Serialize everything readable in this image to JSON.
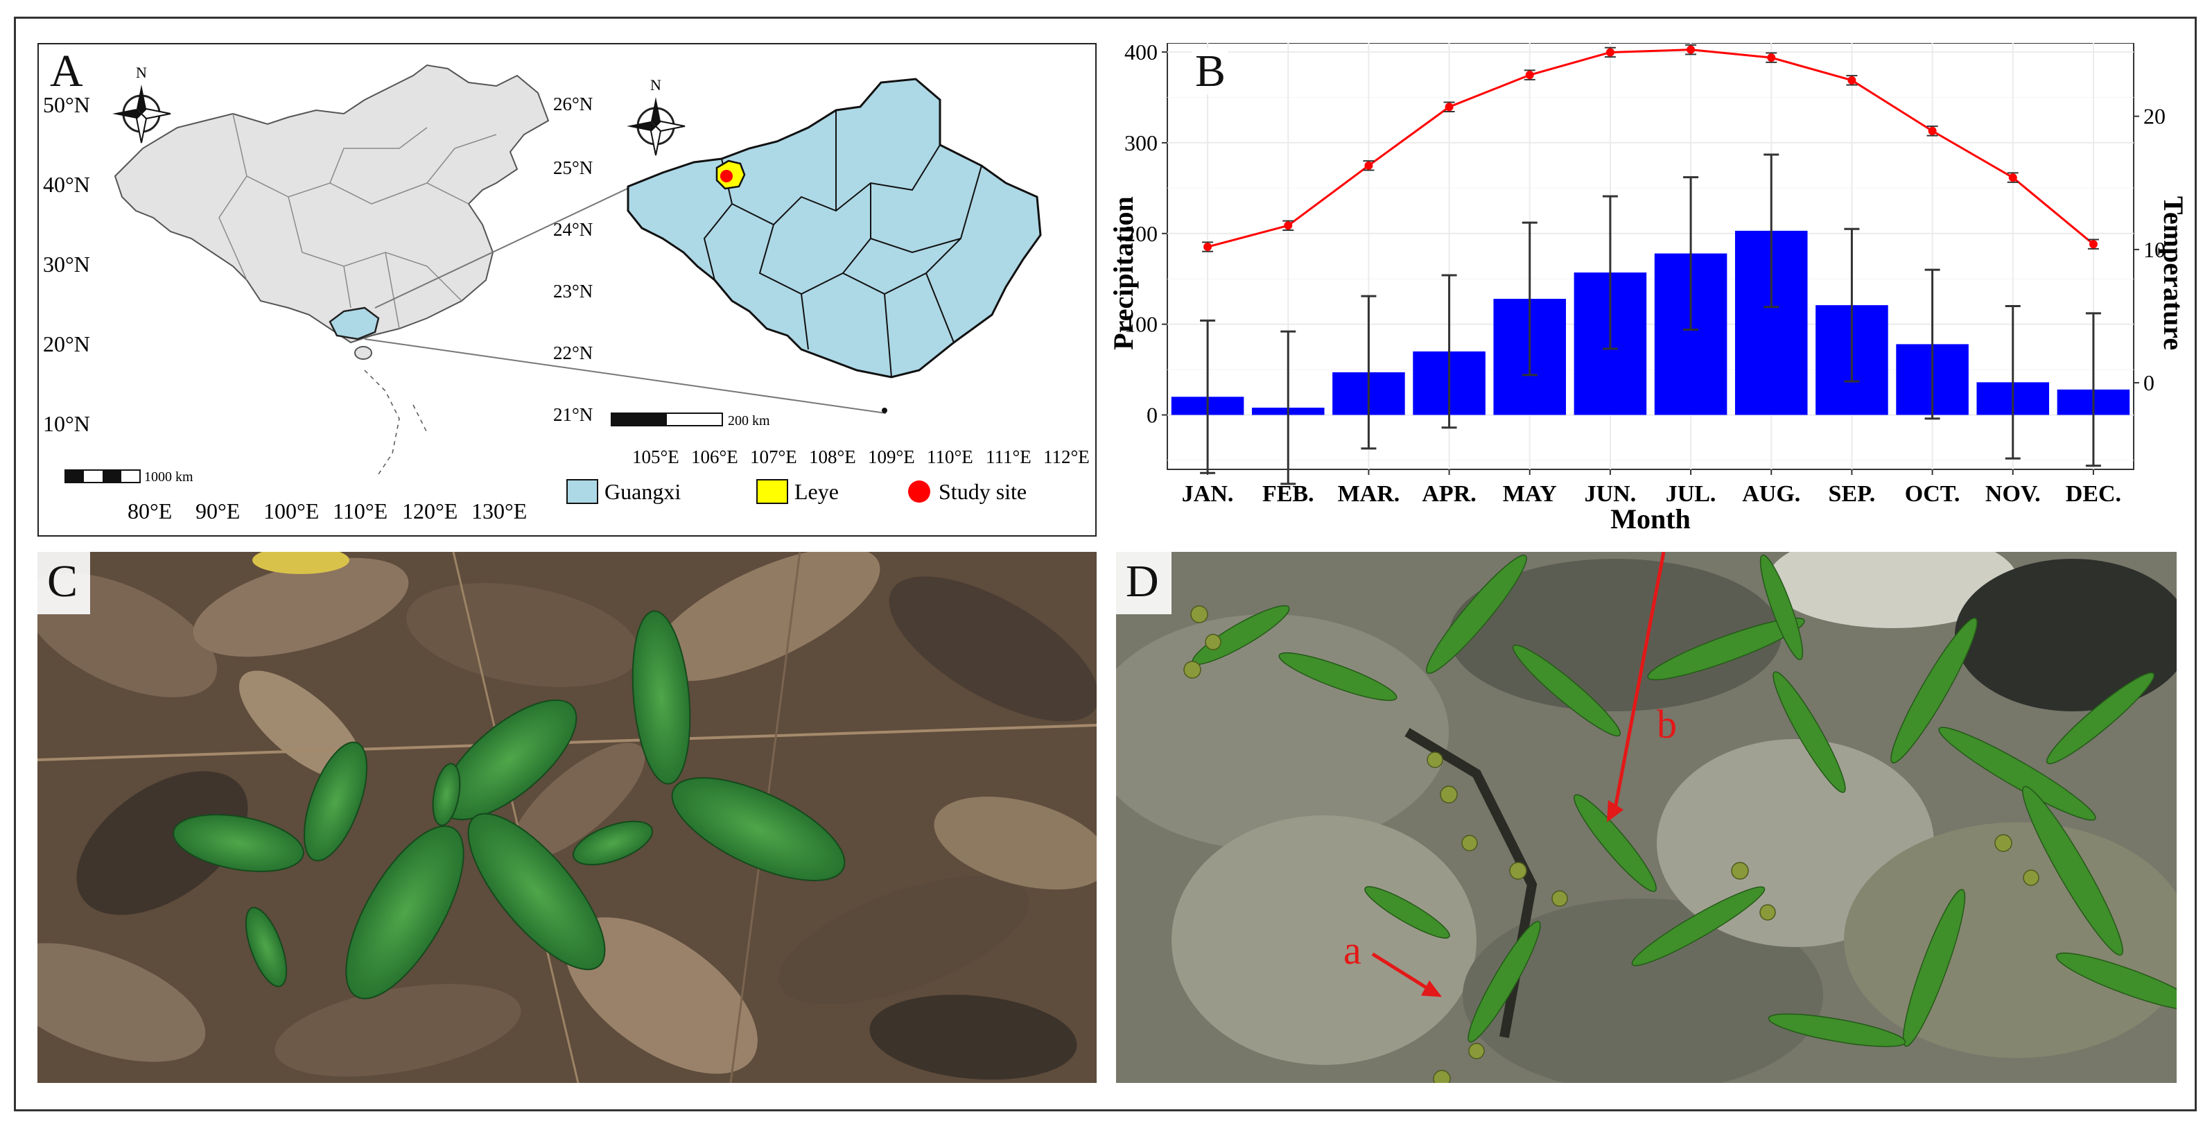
{
  "panels": {
    "a": {
      "letter": "A"
    },
    "b": {
      "letter": "B"
    },
    "c": {
      "letter": "C"
    },
    "d": {
      "letter": "D"
    }
  },
  "map": {
    "north": "N",
    "china_lat_labels": [
      "50°N",
      "40°N",
      "30°N",
      "20°N",
      "10°N"
    ],
    "china_lon_labels": [
      "80°E",
      "90°E",
      "100°E",
      "110°E",
      "120°E",
      "130°E"
    ],
    "china_scale": "1000 km",
    "gx_lat_labels": [
      "26°N",
      "25°N",
      "24°N",
      "23°N",
      "22°N",
      "21°N"
    ],
    "gx_lon_labels": [
      "105°E",
      "106°E",
      "107°E",
      "108°E",
      "109°E",
      "110°E",
      "111°E",
      "112°E"
    ],
    "gx_scale": "200 km",
    "legend": [
      {
        "label": "Guangxi",
        "color": "#add8e6"
      },
      {
        "label": "Leye",
        "color": "#ffff00"
      },
      {
        "label": "Study site",
        "color": "#ff0000"
      }
    ]
  },
  "chart_data": {
    "type": "bar",
    "title": "",
    "categories": [
      "JAN.",
      "FEB.",
      "MAR.",
      "APR.",
      "MAY",
      "JUN.",
      "JUL.",
      "AUG.",
      "SEP.",
      "OCT.",
      "NOV.",
      "DEC."
    ],
    "xlabel": "Month",
    "ylabel": "Precipitation",
    "y2label": "Temperature",
    "ylim": [
      -60,
      410
    ],
    "yticks": [
      "0",
      "100",
      "200",
      "300",
      "400"
    ],
    "y2lim": [
      -6.5,
      25.5
    ],
    "y2ticks": [
      "0",
      "10",
      "20"
    ],
    "bar_color": "#0000ff",
    "line_color": "#ff0000",
    "series": [
      {
        "name": "Precipitation",
        "kind": "bar",
        "values": [
          20,
          8,
          47,
          70,
          128,
          157,
          178,
          203,
          121,
          78,
          36,
          28
        ],
        "sd": [
          84,
          84,
          84,
          84,
          84,
          84,
          84,
          84,
          84,
          82,
          84,
          84
        ]
      },
      {
        "name": "Temperature",
        "kind": "line",
        "values": [
          10.2,
          11.8,
          16.3,
          20.7,
          23.1,
          24.8,
          25.0,
          24.4,
          22.7,
          18.9,
          15.4,
          10.4
        ],
        "sd": [
          0.35,
          0.35,
          0.35,
          0.35,
          0.35,
          0.35,
          0.35,
          0.35,
          0.35,
          0.35,
          0.35,
          0.35
        ]
      }
    ]
  },
  "photos": {
    "d_arrows": [
      "a",
      "b"
    ]
  },
  "colors": {
    "china_fill": "#e3e3e3",
    "guangxi_fill": "#add8e6",
    "leye_fill": "#ffff00",
    "site": "#ff0000"
  }
}
